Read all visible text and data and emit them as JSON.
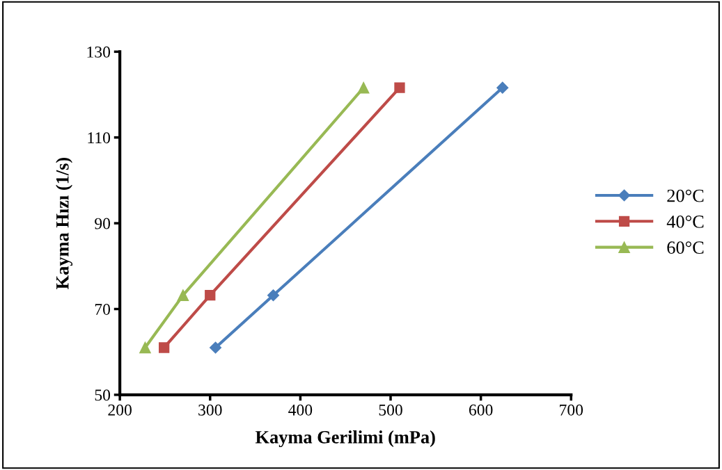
{
  "chart_data": {
    "type": "line",
    "xlabel": "Kayma Gerilimi (mPa)",
    "ylabel": "Kayma Hızı (1/s)",
    "xlim": [
      200,
      700
    ],
    "xticks": [
      200,
      300,
      400,
      500,
      600,
      700
    ],
    "ylim": [
      50,
      130
    ],
    "yticks": [
      50,
      70,
      90,
      110,
      130
    ],
    "grid": false,
    "legend": "right",
    "series": [
      {
        "name": "20°C",
        "color": "#4a7ebb",
        "marker": "diamond",
        "x": [
          306,
          370,
          624
        ],
        "values": [
          61.0,
          73.2,
          121.6
        ]
      },
      {
        "name": "40°C",
        "color": "#be4b48",
        "marker": "square",
        "x": [
          249,
          300,
          510
        ],
        "values": [
          61.0,
          73.2,
          121.6
        ]
      },
      {
        "name": "60°C",
        "color": "#98b954",
        "marker": "triangle",
        "x": [
          228,
          270,
          470
        ],
        "values": [
          61.0,
          73.2,
          121.6
        ]
      }
    ]
  }
}
